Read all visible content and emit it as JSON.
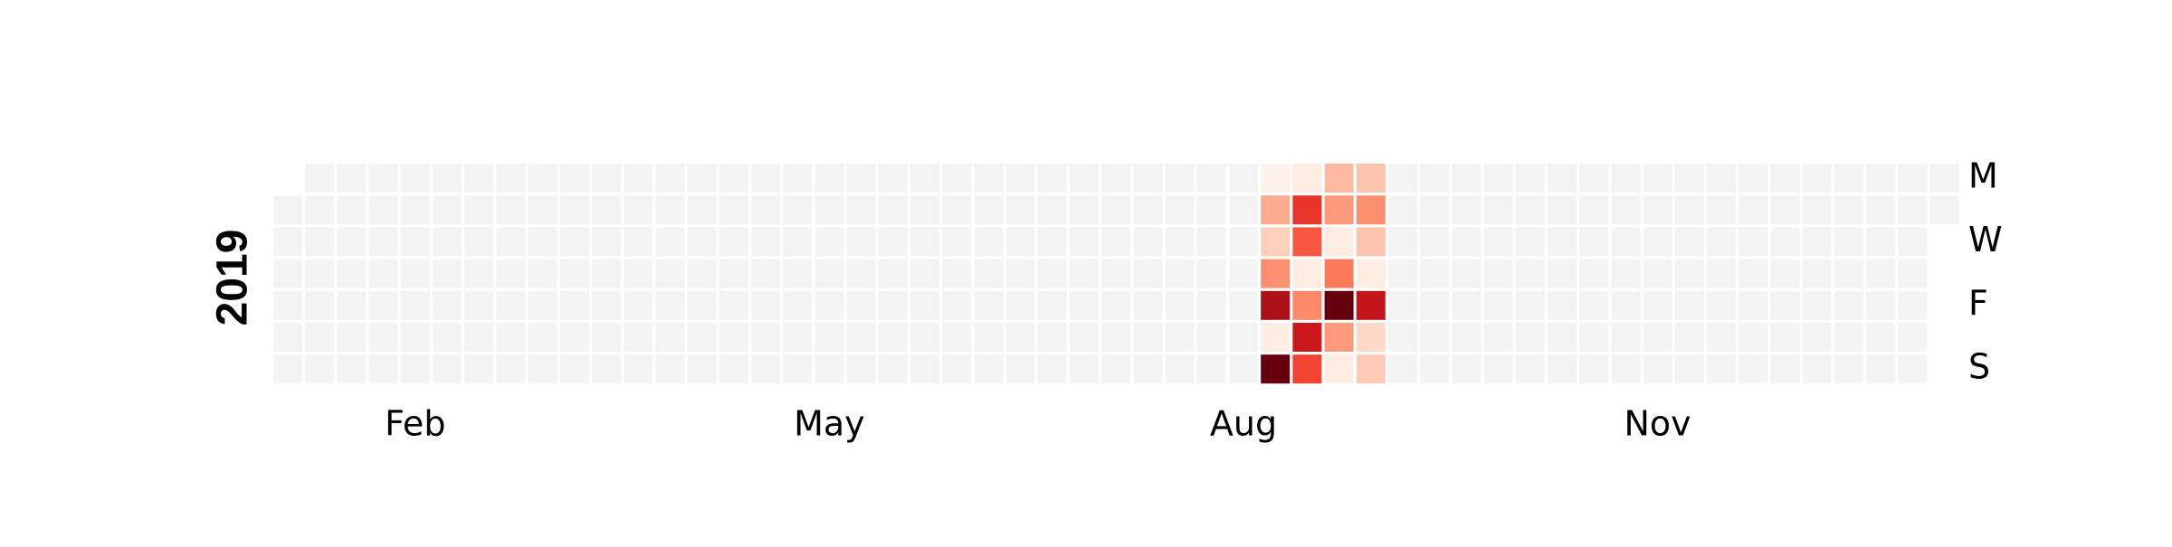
{
  "chart_data": {
    "type": "heatmap",
    "year": "2019",
    "colormap": "Reds",
    "empty_color": "#f3f3f3",
    "cell_border_color": "#ffffff",
    "month_tick_labels": [
      "Feb",
      "May",
      "Aug",
      "Nov"
    ],
    "day_tick_labels": [
      "M",
      "W",
      "F",
      "S"
    ],
    "grid_rows": [
      "Mon",
      "Tue",
      "Wed",
      "Thu",
      "Fri",
      "Sat",
      "Sun"
    ],
    "value_range": [
      0,
      1
    ],
    "values": [
      {
        "date": "2019-08-05",
        "value": 0.02
      },
      {
        "date": "2019-08-06",
        "value": 0.3
      },
      {
        "date": "2019-08-07",
        "value": 0.18
      },
      {
        "date": "2019-08-08",
        "value": 0.38
      },
      {
        "date": "2019-08-09",
        "value": 0.85
      },
      {
        "date": "2019-08-10",
        "value": 0.05
      },
      {
        "date": "2019-08-11",
        "value": 1.0
      },
      {
        "date": "2019-08-12",
        "value": 0.05
      },
      {
        "date": "2019-08-13",
        "value": 0.65
      },
      {
        "date": "2019-08-14",
        "value": 0.55
      },
      {
        "date": "2019-08-15",
        "value": 0.05
      },
      {
        "date": "2019-08-16",
        "value": 0.4
      },
      {
        "date": "2019-08-17",
        "value": 0.75
      },
      {
        "date": "2019-08-18",
        "value": 0.6
      },
      {
        "date": "2019-08-19",
        "value": 0.25
      },
      {
        "date": "2019-08-20",
        "value": 0.35
      },
      {
        "date": "2019-08-21",
        "value": 0.05
      },
      {
        "date": "2019-08-22",
        "value": 0.45
      },
      {
        "date": "2019-08-23",
        "value": 1.0
      },
      {
        "date": "2019-08-24",
        "value": 0.35
      },
      {
        "date": "2019-08-25",
        "value": 0.05
      },
      {
        "date": "2019-08-26",
        "value": 0.22
      },
      {
        "date": "2019-08-27",
        "value": 0.38
      },
      {
        "date": "2019-08-28",
        "value": 0.22
      },
      {
        "date": "2019-08-29",
        "value": 0.05
      },
      {
        "date": "2019-08-30",
        "value": 0.78
      },
      {
        "date": "2019-08-31",
        "value": 0.15
      },
      {
        "date": "2019-09-01",
        "value": 0.2
      }
    ]
  }
}
